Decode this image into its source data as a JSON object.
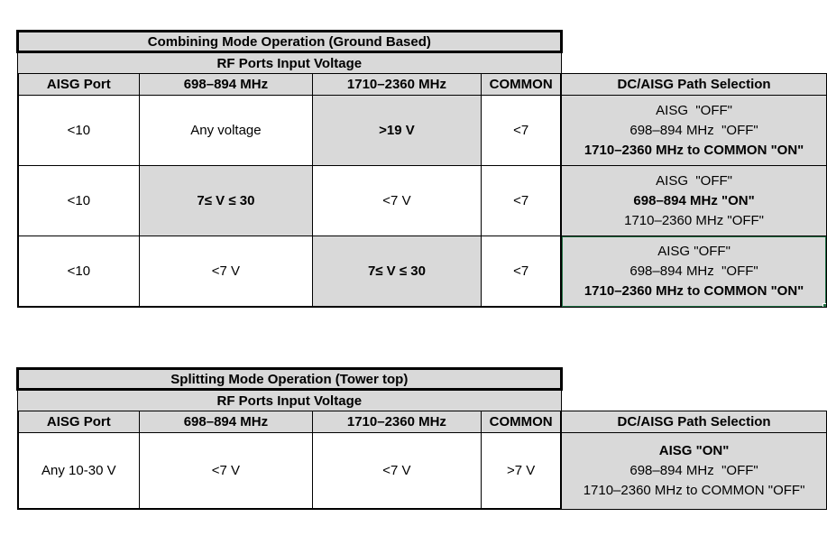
{
  "colors": {
    "header_bg": "#d9d9d9",
    "highlight_cell_bg": "#d9d9d9",
    "border": "#000000",
    "selection_green": "#217346"
  },
  "combining_table": {
    "title": "Combining Mode Operation (Ground Based)",
    "subtitle": "RF Ports Input Voltage",
    "columns": {
      "aisg": "AISG Port",
      "low_band": "698–894 MHz",
      "high_band": "1710–2360 MHz",
      "common": "COMMON",
      "path": "DC/AISG Path Selection"
    },
    "r1": {
      "aisg": "<10",
      "low_band": "Any voltage",
      "high_band": ">19 V",
      "common": "<7",
      "p1": "AISG  \"OFF\"",
      "p2": "698–894 MHz  \"OFF\"",
      "p3": "1710–2360 MHz to COMMON \"ON\""
    },
    "r2": {
      "aisg": "<10",
      "low_band": "7≤ V ≤ 30",
      "high_band": "<7 V",
      "common": "<7",
      "p1": "AISG  \"OFF\"",
      "p2": "698–894 MHz \"ON\"",
      "p3": "1710–2360 MHz \"OFF\""
    },
    "r3": {
      "aisg": "<10",
      "low_band": "<7 V",
      "high_band": "7≤ V ≤ 30",
      "common": "<7",
      "p1": "AISG \"OFF\"",
      "p2": "698–894 MHz  \"OFF\"",
      "p3": "1710–2360 MHz to COMMON \"ON\""
    }
  },
  "splitting_table": {
    "title": "Splitting Mode Operation (Tower top)",
    "subtitle": "RF Ports Input Voltage",
    "columns": {
      "aisg": "AISG Port",
      "low_band": "698–894 MHz",
      "high_band": "1710–2360 MHz",
      "common": "COMMON",
      "path": "DC/AISG Path Selection"
    },
    "r1": {
      "aisg": "Any 10-30 V",
      "low_band": "<7 V",
      "high_band": "<7 V",
      "common": ">7 V",
      "p1": "AISG \"ON\"",
      "p2": "698–894 MHz  \"OFF\"",
      "p3": "1710–2360 MHz to COMMON \"OFF\""
    }
  }
}
